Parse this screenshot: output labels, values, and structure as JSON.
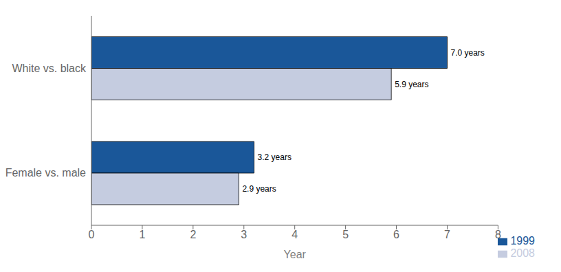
{
  "chart_data": {
    "type": "bar",
    "orientation": "horizontal",
    "categories": [
      "White vs. black",
      "Female vs. male"
    ],
    "series": [
      {
        "name": "1999",
        "color": "#1a5799",
        "values": [
          7.0,
          3.2
        ],
        "value_labels": [
          "7.0 years",
          "3.2 years"
        ]
      },
      {
        "name": "2008",
        "color": "#c5cce0",
        "values": [
          5.9,
          2.9
        ],
        "value_labels": [
          "5.9 years",
          "2.9 years"
        ]
      }
    ],
    "xlabel": "Year",
    "xlim": [
      0,
      8
    ],
    "xticks": [
      0,
      1,
      2,
      3,
      4,
      5,
      6,
      7,
      8
    ],
    "legend": "lower right",
    "data_labels": true
  }
}
